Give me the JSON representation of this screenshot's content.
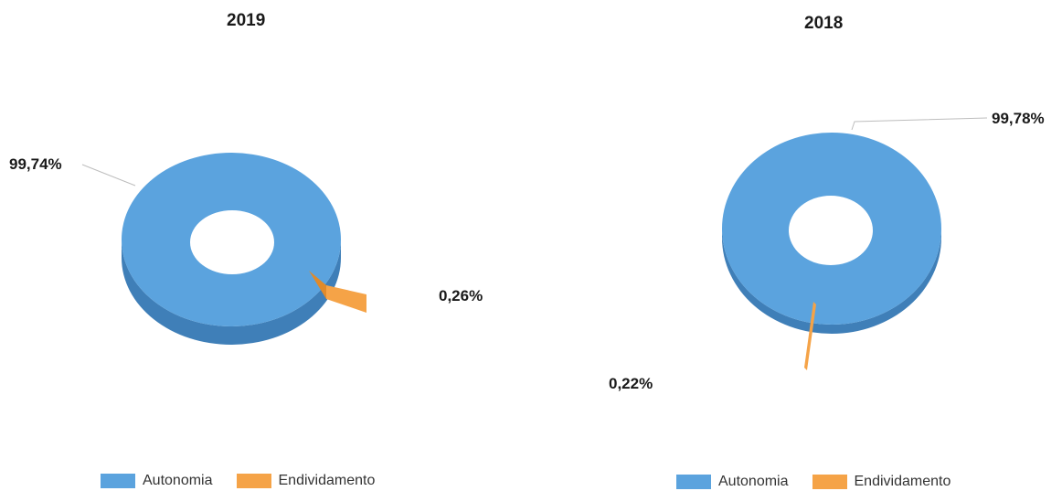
{
  "chart_data": [
    {
      "type": "pie",
      "title": "2019",
      "categories": [
        "Autonomia",
        "Endividamento"
      ],
      "values": [
        99.74,
        0.26
      ],
      "data_labels": [
        "99,74%",
        "0,26%"
      ],
      "legend_position": "bottom",
      "colors": [
        "#5ba3de",
        "#f5a347"
      ]
    },
    {
      "type": "pie",
      "title": "2018",
      "categories": [
        "Autonomia",
        "Endividamento"
      ],
      "values": [
        99.78,
        0.22
      ],
      "data_labels": [
        "99,78%",
        "0,22%"
      ],
      "legend_position": "bottom",
      "colors": [
        "#5ba3de",
        "#f5a347"
      ]
    }
  ]
}
